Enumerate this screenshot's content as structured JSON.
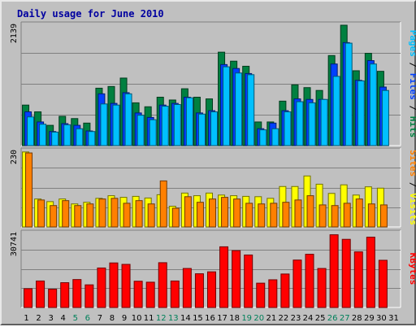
{
  "chart_data": {
    "type": "bar",
    "title": "Daily usage for June 2010",
    "categories": [
      "1",
      "2",
      "3",
      "4",
      "5",
      "6",
      "7",
      "8",
      "9",
      "10",
      "11",
      "12",
      "13",
      "14",
      "15",
      "16",
      "17",
      "18",
      "19",
      "20",
      "21",
      "22",
      "23",
      "24",
      "25",
      "26",
      "27",
      "28",
      "29",
      "30",
      "31"
    ],
    "weekend_categories": [
      "5",
      "6",
      "12",
      "13",
      "19",
      "20",
      "26",
      "27"
    ],
    "panels": [
      {
        "id": "hits-files-pages",
        "ymax_label": "2139",
        "ymax": 2139,
        "legend": [
          {
            "text": "Pages",
            "color": "#00c0ff"
          },
          {
            "text": " / ",
            "color": "#000000"
          },
          {
            "text": "Files",
            "color": "#0040ff"
          },
          {
            "text": " / ",
            "color": "#000000"
          },
          {
            "text": "Hits",
            "color": "#008040"
          }
        ],
        "series": [
          {
            "name": "Hits",
            "color": "#008040",
            "values": [
              720,
              600,
              360,
              520,
              480,
              400,
              1020,
              1050,
              1200,
              760,
              690,
              860,
              810,
              1010,
              860,
              830,
              1660,
              1500,
              1410,
              420,
              420,
              790,
              1080,
              1030,
              980,
              1600,
              2139,
              1330,
              1640,
              1320,
              0
            ]
          },
          {
            "name": "Files",
            "color": "#0040ff",
            "values": [
              600,
              420,
              250,
              390,
              360,
              260,
              920,
              750,
              940,
              580,
              500,
              720,
              750,
              860,
              580,
              620,
              1440,
              1370,
              1280,
              300,
              400,
              620,
              830,
              820,
              820,
              1450,
              1830,
              1160,
              1510,
              1040,
              0
            ]
          },
          {
            "name": "Pages",
            "color": "#00c0ff",
            "values": [
              510,
              380,
              240,
              370,
              300,
              250,
              740,
              720,
              920,
              540,
              460,
              700,
              730,
              850,
              560,
              600,
              1400,
              1290,
              1260,
              280,
              300,
              600,
              780,
              760,
              820,
              1230,
              1820,
              1150,
              1450,
              980,
              0
            ]
          }
        ]
      },
      {
        "id": "visits-sites",
        "ymax_label": "230",
        "ymax": 230,
        "legend": [
          {
            "text": "Sites",
            "color": "#ff8000"
          },
          {
            "text": " / ",
            "color": "#000000"
          },
          {
            "text": "Visits",
            "color": "#ffff00"
          }
        ],
        "series": [
          {
            "name": "Visits",
            "color": "#ffff00",
            "values": [
              228,
              85,
              77,
              85,
              70,
              75,
              87,
              95,
              90,
              93,
              88,
              98,
              63,
              103,
              95,
              103,
              97,
              95,
              93,
              92,
              87,
              123,
              123,
              155,
              130,
              102,
              128,
              97,
              122,
              118,
              0
            ]
          },
          {
            "name": "Sites",
            "color": "#ff8000",
            "values": [
              225,
              82,
              65,
              80,
              65,
              70,
              85,
              87,
              72,
              80,
              70,
              140,
              57,
              92,
              75,
              85,
              90,
              85,
              72,
              70,
              72,
              75,
              82,
              95,
              67,
              65,
              72,
              85,
              70,
              67,
              0
            ]
          }
        ]
      },
      {
        "id": "kbytes",
        "ymax_label": "30741",
        "ymax": 30741,
        "legend": [
          {
            "text": "KBytes",
            "color": "#ff0000"
          }
        ],
        "series": [
          {
            "name": "KBytes",
            "color": "#ff0000",
            "values": [
              7800,
              11000,
              7600,
              10300,
              11600,
              9400,
              16400,
              18500,
              17900,
              10900,
              10500,
              18600,
              11000,
              16200,
              14000,
              14800,
              25200,
              23600,
              21800,
              10100,
              11500,
              13900,
              19700,
              22100,
              16200,
              30200,
              28300,
              23100,
              29200,
              19600,
              0
            ]
          }
        ]
      }
    ]
  }
}
